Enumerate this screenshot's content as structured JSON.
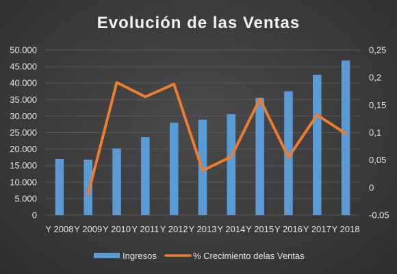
{
  "chart_data": {
    "type": "bar",
    "title": "Evolución de las Ventas",
    "categories": [
      "Y 2008",
      "Y 2009",
      "Y 2010",
      "Y 2011",
      "Y 2012",
      "Y 2013",
      "Y 2014",
      "Y 2015",
      "Y 2016",
      "Y 2017",
      "Y 2018"
    ],
    "series": [
      {
        "name": "Ingresos",
        "type": "bar",
        "axis": "left",
        "color": "#5b9bd5",
        "values": [
          17000,
          16800,
          20200,
          23600,
          28000,
          28900,
          30600,
          35500,
          37500,
          42500,
          46800
        ]
      },
      {
        "name": "% Crecimiento delas Ventas",
        "type": "line",
        "axis": "right",
        "color": "#ed7d31",
        "values": [
          null,
          -0.012,
          0.191,
          0.165,
          0.188,
          0.031,
          0.056,
          0.161,
          0.055,
          0.132,
          0.098
        ]
      }
    ],
    "y_left": {
      "min": 0,
      "max": 50000,
      "ticks": [
        0,
        5000,
        10000,
        15000,
        20000,
        25000,
        30000,
        35000,
        40000,
        45000,
        50000
      ],
      "tick_labels": [
        "0",
        "5.000",
        "10.000",
        "15.000",
        "20.000",
        "25.000",
        "30.000",
        "35.000",
        "40.000",
        "45.000",
        "50.000"
      ]
    },
    "y_right": {
      "min": -0.05,
      "max": 0.25,
      "ticks": [
        -0.05,
        0,
        0.05,
        0.1,
        0.15,
        0.2,
        0.25
      ],
      "tick_labels": [
        "-0,05",
        "0",
        "0,05",
        "0,1",
        "0,15",
        "0,2",
        "0,25"
      ]
    },
    "grid": true,
    "legend": "bottom"
  }
}
